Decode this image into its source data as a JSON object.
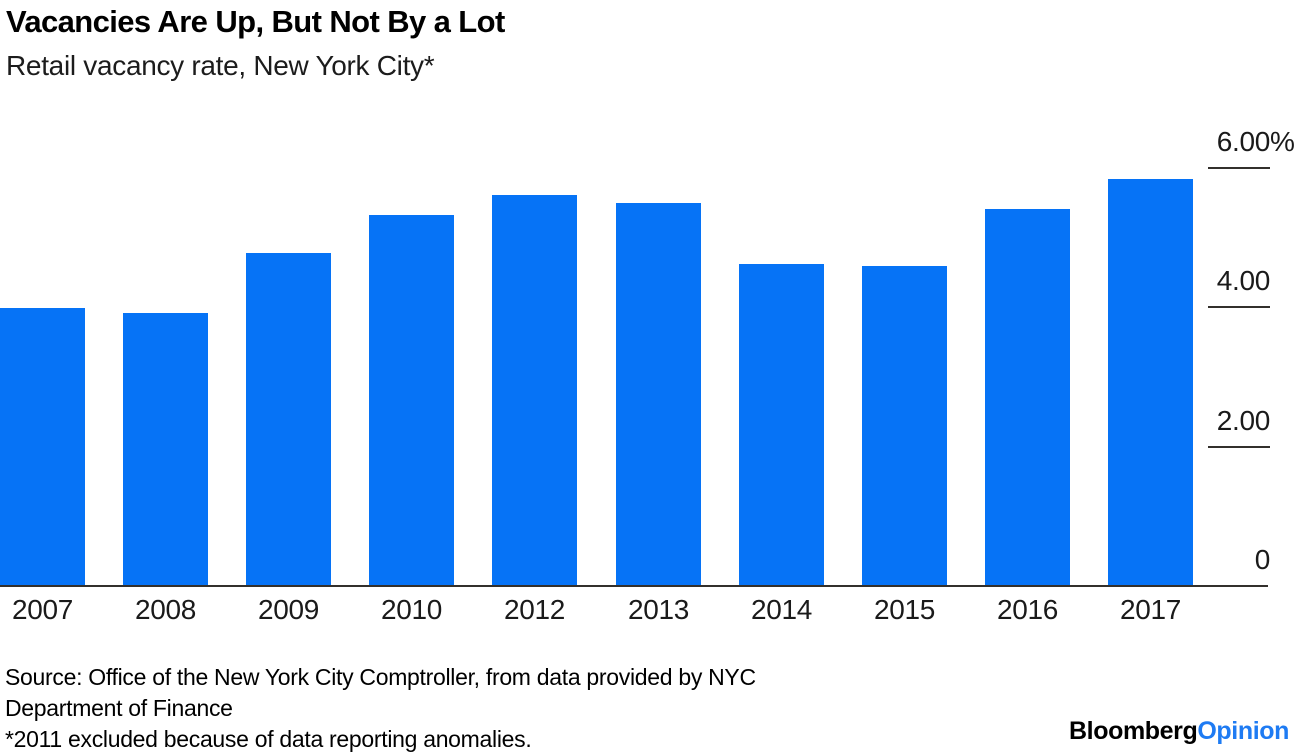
{
  "header": {
    "title": "Vacancies Are Up, But Not By a Lot",
    "subtitle": "Retail vacancy rate, New York City*"
  },
  "chart_data": {
    "type": "bar",
    "categories": [
      "2007",
      "2008",
      "2009",
      "2010",
      "2012",
      "2013",
      "2014",
      "2015",
      "2016",
      "2017"
    ],
    "values": [
      3.97,
      3.9,
      4.77,
      5.31,
      5.6,
      5.48,
      4.61,
      4.58,
      5.4,
      5.83
    ],
    "title": "Vacancies Are Up, But Not By a Lot",
    "subtitle": "Retail vacancy rate, New York City*",
    "xlabel": "",
    "ylabel": "",
    "ylim": [
      0,
      6
    ],
    "yticks": [
      {
        "value": 6,
        "label": "6.00",
        "suffix": "%"
      },
      {
        "value": 4,
        "label": "4.00",
        "suffix": ""
      },
      {
        "value": 2,
        "label": "2.00",
        "suffix": ""
      },
      {
        "value": 0,
        "label": "0",
        "suffix": ""
      }
    ],
    "bar_color": "#0673f6",
    "axis_color": "#33302c",
    "grid": false,
    "legend": "none",
    "axis_side": "right",
    "note": "2011 excluded"
  },
  "footer": {
    "source_lines": [
      "Source: Office of the New York City Comptroller, from data provided by NYC",
      "Department of Finance"
    ],
    "footnote": "*2011 excluded because of data reporting anomalies.",
    "logo": {
      "black": "Bloomberg",
      "blue": "Opinion",
      "blue_color": "#1e7bf3",
      "black_color": "#000000"
    }
  }
}
